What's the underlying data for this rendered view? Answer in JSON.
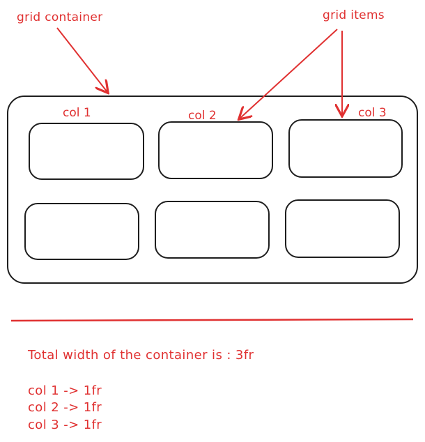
{
  "annotations": {
    "container_label": "grid container",
    "items_label": "grid items"
  },
  "columns": [
    "col 1",
    "col 2",
    "col 3"
  ],
  "notes": {
    "total": "Total width of the container is : 3fr",
    "lines": [
      "col 1 -> 1fr",
      "col 2 -> 1fr",
      "col 3 -> 1fr"
    ]
  },
  "colors": {
    "ink": "#1e1e1e",
    "accent": "#e03131"
  }
}
